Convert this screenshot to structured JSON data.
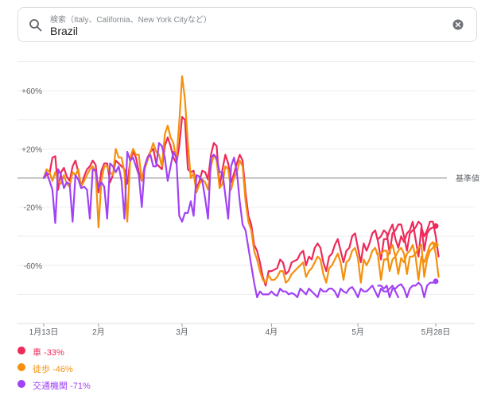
{
  "search": {
    "label": "検索（Italy、California、New York Cityなど）",
    "value": "Brazil"
  },
  "chart_data": {
    "type": "line",
    "ylim": [
      -100,
      83
    ],
    "y_ticks": [
      {
        "value": 60,
        "label": "+60%"
      },
      {
        "value": 20,
        "label": "+20%"
      },
      {
        "value": -20,
        "label": "-20%"
      },
      {
        "value": -60,
        "label": "-60%"
      }
    ],
    "baseline_label": "基準値",
    "x_ticks": [
      {
        "date": "2020-01-13",
        "label": "1月13日"
      },
      {
        "date": "2020-02-01",
        "label": "2月"
      },
      {
        "date": "2020-03-01",
        "label": "3月"
      },
      {
        "date": "2020-04-01",
        "label": "4月"
      },
      {
        "date": "2020-05-01",
        "label": "5月"
      },
      {
        "date": "2020-05-28",
        "label": "5月28日"
      }
    ],
    "x_start": "2020-01-13",
    "x_end": "2020-05-28",
    "series": [
      {
        "name": "車",
        "color": "#ee2a5a",
        "legend": "-33%",
        "segments": [
          {
            "start": "2020-01-13",
            "values": [
              0,
              2,
              3,
              14,
              15,
              -8,
              4,
              7,
              1,
              -2,
              8,
              12,
              4,
              -6,
              1,
              6,
              8,
              12,
              9,
              -10,
              5,
              10,
              10,
              -3,
              2,
              12,
              10,
              8,
              6,
              -4,
              12,
              18,
              14,
              4,
              -2,
              8,
              14,
              18,
              20,
              10,
              8,
              6,
              22,
              28,
              22,
              14,
              10,
              22,
              42,
              40,
              6,
              4,
              5,
              -7,
              -2,
              5,
              4,
              -1,
              16,
              24,
              22,
              -6,
              6,
              16,
              10,
              -3,
              3,
              10,
              16,
              12,
              -10,
              -26,
              -32,
              -46,
              -50,
              -58,
              -68,
              -74,
              -64,
              -64,
              -63,
              -62,
              -56,
              -58,
              -66,
              -64,
              -58,
              -57,
              -56,
              -52,
              -50,
              -60,
              -54,
              -56,
              -48,
              -45,
              -48,
              -58,
              -64,
              -54,
              -52,
              -46,
              -42,
              -50,
              -58,
              -50,
              -48,
              -40,
              -38,
              -48,
              -58,
              -45,
              -50,
              -45,
              -38,
              -36,
              -44,
              -56,
              -42,
              -42,
              -36,
              -32,
              -42,
              -48,
              -40,
              -44,
              -38,
              -36,
              -30,
              -42,
              -54,
              -34,
              -40,
              -36,
              -30,
              -30,
              -40,
              -54
            ]
          },
          {
            "start": "2020-05-08",
            "values": [
              -42,
              -40,
              -36,
              -38,
              -52,
              -38,
              -36,
              -32,
              -32,
              -40,
              -50,
              -38,
              -36,
              -34,
              -30,
              -32,
              -50,
              -38,
              -35,
              -34,
              -33
            ]
          }
        ]
      },
      {
        "name": "徒歩",
        "color": "#f5900c",
        "legend": "-46%",
        "segments": [
          {
            "start": "2020-01-13",
            "values": [
              0,
              6,
              4,
              -2,
              4,
              -2,
              -4,
              2,
              -4,
              -6,
              4,
              2,
              6,
              -6,
              -2,
              2,
              6,
              8,
              4,
              -34,
              -2,
              8,
              8,
              4,
              2,
              20,
              14,
              14,
              4,
              -30,
              14,
              20,
              16,
              16,
              -2,
              6,
              12,
              18,
              24,
              18,
              16,
              8,
              30,
              36,
              28,
              24,
              12,
              38,
              70,
              54,
              24,
              0,
              3,
              -10,
              -4,
              -1,
              -3,
              -8,
              8,
              16,
              12,
              -7,
              -4,
              8,
              6,
              -8,
              0,
              4,
              12,
              8,
              -16,
              -30,
              -36,
              -50,
              -56,
              -64,
              -70,
              -72,
              -67,
              -70,
              -70,
              -68,
              -64,
              -64,
              -72,
              -70,
              -66,
              -64,
              -62,
              -60,
              -58,
              -68,
              -64,
              -62,
              -58,
              -54,
              -56,
              -66,
              -72,
              -62,
              -60,
              -56,
              -52,
              -58,
              -70,
              -58,
              -56,
              -50,
              -48,
              -55,
              -72,
              -56,
              -60,
              -56,
              -50,
              -48,
              -54,
              -70,
              -56,
              -56,
              -50,
              -46,
              -54,
              -66,
              -55,
              -58,
              -52,
              -50,
              -46,
              -54,
              -70,
              -54,
              -58,
              -52,
              -46,
              -44,
              -52,
              -68
            ]
          },
          {
            "start": "2020-05-08",
            "values": [
              -52,
              -52,
              -50,
              -50,
              -64,
              -56,
              -54,
              -50,
              -48,
              -52,
              -66,
              -54,
              -54,
              -52,
              -48,
              -46,
              -68,
              -56,
              -50,
              -48,
              -46
            ]
          }
        ]
      },
      {
        "name": "交通機関",
        "color": "#a142f4",
        "legend": "-71%",
        "segments": [
          {
            "start": "2020-01-13",
            "values": [
              0,
              4,
              -2,
              -8,
              -31,
              6,
              2,
              -7,
              -3,
              -4,
              -30,
              2,
              -1,
              -7,
              -6,
              -8,
              -28,
              6,
              5,
              -7,
              -3,
              -6,
              -28,
              10,
              8,
              4,
              8,
              -2,
              -28,
              18,
              12,
              14,
              8,
              2,
              -20,
              8,
              14,
              16,
              8,
              8,
              24,
              22,
              14,
              -2,
              8,
              18,
              14,
              -26,
              -30,
              -24,
              -24,
              -16,
              -26,
              2,
              1,
              -2,
              -14,
              -28,
              14,
              16,
              14,
              4,
              4,
              -12,
              -28,
              8,
              14,
              4,
              -16,
              -32,
              -36,
              -48,
              -60,
              -72,
              -82,
              -78,
              -80,
              -80,
              -80,
              -78,
              -80,
              -81,
              -76,
              -78,
              -78,
              -80,
              -79,
              -80,
              -82,
              -76,
              -78,
              -80,
              -76,
              -78,
              -80,
              -82,
              -76,
              -78,
              -78,
              -76,
              -76,
              -78,
              -82,
              -76,
              -78,
              -79,
              -76,
              -75,
              -78,
              -82,
              -76,
              -78,
              -78,
              -76,
              -74,
              -78,
              -82,
              -76,
              -78,
              -78,
              -76,
              -74,
              -78,
              -82
            ]
          },
          {
            "start": "2020-05-08",
            "values": [
              -74,
              -74,
              -76,
              -74,
              -82,
              -76,
              -76,
              -74,
              -73,
              -76,
              -82,
              -76,
              -74,
              -74,
              -72,
              -74,
              -82,
              -74,
              -72,
              -72,
              -71
            ]
          }
        ]
      }
    ]
  }
}
